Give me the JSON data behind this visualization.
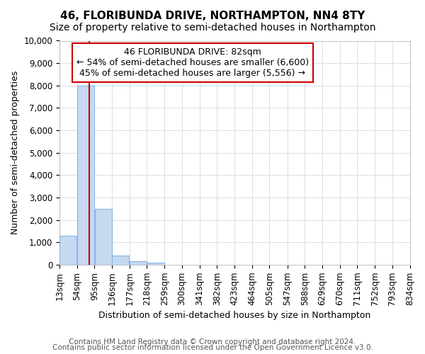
{
  "title": "46, FLORIBUNDA DRIVE, NORTHAMPTON, NN4 8TY",
  "subtitle": "Size of property relative to semi-detached houses in Northampton",
  "xlabel": "Distribution of semi-detached houses by size in Northampton",
  "ylabel": "Number of semi-detached properties",
  "footnote1": "Contains HM Land Registry data © Crown copyright and database right 2024.",
  "footnote2": "Contains public sector information licensed under the Open Government Licence v3.0.",
  "annotation_line1": "46 FLORIBUNDA DRIVE: 82sqm",
  "annotation_line2": "← 54% of semi-detached houses are smaller (6,600)",
  "annotation_line3": "45% of semi-detached houses are larger (5,556) →",
  "property_size": 82,
  "bin_edges": [
    13,
    54,
    95,
    136,
    177,
    218,
    259,
    300,
    341,
    382,
    423,
    464,
    505,
    547,
    588,
    629,
    670,
    711,
    752,
    793,
    834
  ],
  "bin_counts": [
    1300,
    8000,
    2500,
    400,
    150,
    100,
    0,
    0,
    0,
    0,
    0,
    0,
    0,
    0,
    0,
    0,
    0,
    0,
    0,
    0
  ],
  "bar_color": "#c5d9f1",
  "bar_edge_color": "#8ab4e0",
  "vline_color": "#cc0000",
  "vline_x": 82,
  "ylim": [
    0,
    10000
  ],
  "yticks": [
    0,
    1000,
    2000,
    3000,
    4000,
    5000,
    6000,
    7000,
    8000,
    9000,
    10000
  ],
  "background_color": "#ffffff",
  "grid_color": "#dddddd",
  "annotation_box_facecolor": "#ffffff",
  "annotation_box_edgecolor": "#cc0000",
  "title_fontsize": 11,
  "subtitle_fontsize": 10,
  "axis_label_fontsize": 9,
  "tick_fontsize": 8.5,
  "annotation_fontsize": 9,
  "footnote_fontsize": 7.5
}
